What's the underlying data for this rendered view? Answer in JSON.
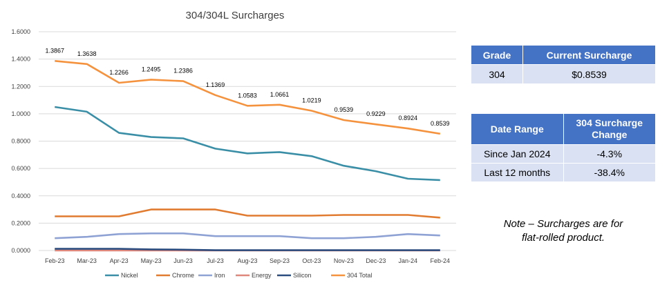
{
  "chart_data": {
    "type": "line",
    "title": "304/304L Surcharges",
    "categories": [
      "Feb-23",
      "Mar-23",
      "Apr-23",
      "May-23",
      "Jun-23",
      "Jul-23",
      "Aug-23",
      "Sep-23",
      "Oct-23",
      "Nov-23",
      "Dec-23",
      "Jan-24",
      "Feb-24"
    ],
    "ylim": [
      0,
      1.6
    ],
    "yticks": [
      "0.0000",
      "0.2000",
      "0.4000",
      "0.6000",
      "0.8000",
      "1.0000",
      "1.2000",
      "1.4000",
      "1.6000"
    ],
    "grid": true,
    "legend_position": "bottom",
    "series": [
      {
        "name": "Nickel",
        "color": "#3a8fa7",
        "values": [
          1.05,
          1.015,
          0.86,
          0.83,
          0.82,
          0.745,
          0.71,
          0.72,
          0.69,
          0.62,
          0.58,
          0.525,
          0.515
        ]
      },
      {
        "name": "Chrome",
        "color": "#e07b30",
        "values": [
          0.25,
          0.25,
          0.25,
          0.3,
          0.3,
          0.3,
          0.255,
          0.255,
          0.255,
          0.26,
          0.26,
          0.26,
          0.24
        ]
      },
      {
        "name": "Iron",
        "color": "#8fa2d4",
        "values": [
          0.09,
          0.1,
          0.12,
          0.125,
          0.125,
          0.105,
          0.105,
          0.105,
          0.09,
          0.09,
          0.1,
          0.12,
          0.11
        ]
      },
      {
        "name": "Energy",
        "color": "#e0877c",
        "values": [
          0.0,
          0.0,
          0.0,
          0.0,
          0.0,
          0.0,
          0.0,
          0.0,
          0.0,
          0.0,
          0.0,
          0.0,
          0.0
        ]
      },
      {
        "name": "Silicon",
        "color": "#2b4c7e",
        "values": [
          0.012,
          0.012,
          0.012,
          0.008,
          0.006,
          0.002,
          0.002,
          0.002,
          0.002,
          0.002,
          0.002,
          0.002,
          0.002
        ]
      },
      {
        "name": "304 Total",
        "color": "#f5923e",
        "values": [
          1.3867,
          1.3638,
          1.2266,
          1.2495,
          1.2386,
          1.1369,
          1.0583,
          1.0661,
          1.0219,
          0.9539,
          0.9229,
          0.8924,
          0.8539
        ],
        "labels": [
          "1.3867",
          "1.3638",
          "1.2266",
          "1.2495",
          "1.2386",
          "1.1369",
          "1.0583",
          "1.0661",
          "1.0219",
          "0.9539",
          "0.9229",
          "0.8924",
          "0.8539"
        ]
      }
    ]
  },
  "current_table": {
    "headers": [
      "Grade",
      "Current Surcharge"
    ],
    "row": [
      "304",
      "$0.8539"
    ]
  },
  "change_table": {
    "header_left": "Date Range",
    "header_right_line1": "304 Surcharge",
    "header_right_line2": "Change",
    "rows": [
      [
        "Since Jan 2024",
        "-4.3%"
      ],
      [
        "Last 12 months",
        "-38.4%"
      ]
    ]
  },
  "note": {
    "line1": "Note – Surcharges are for",
    "line2": "flat-rolled product."
  }
}
